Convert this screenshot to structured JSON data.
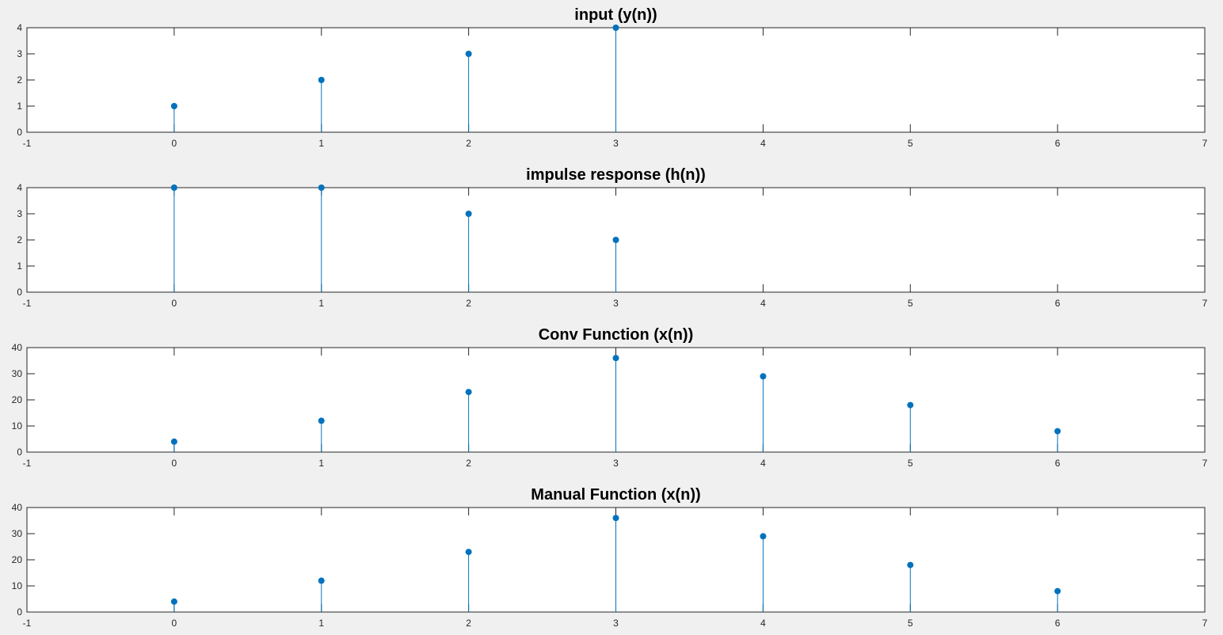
{
  "colors": {
    "figure_background": "#f0f0f0",
    "axes_background": "#ffffff",
    "axis_color": "#262626",
    "series_color": "#0072bd"
  },
  "chart_data": [
    {
      "type": "stem",
      "title": "input (y(n))",
      "x": [
        0,
        1,
        2,
        3
      ],
      "values": [
        1,
        2,
        3,
        4
      ],
      "xlim": [
        -1,
        7
      ],
      "ylim": [
        0,
        4
      ],
      "xticks": [
        -1,
        0,
        1,
        2,
        3,
        4,
        5,
        6,
        7
      ],
      "yticks": [
        0,
        1,
        2,
        3,
        4
      ],
      "grid": false
    },
    {
      "type": "stem",
      "title": "impulse response (h(n))",
      "x": [
        0,
        1,
        2,
        3
      ],
      "values": [
        4,
        4,
        3,
        2
      ],
      "xlim": [
        -1,
        7
      ],
      "ylim": [
        0,
        4
      ],
      "xticks": [
        -1,
        0,
        1,
        2,
        3,
        4,
        5,
        6,
        7
      ],
      "yticks": [
        0,
        1,
        2,
        3,
        4
      ],
      "grid": false
    },
    {
      "type": "stem",
      "title": "Conv Function (x(n))",
      "x": [
        0,
        1,
        2,
        3,
        4,
        5,
        6
      ],
      "values": [
        4,
        12,
        23,
        36,
        29,
        18,
        8
      ],
      "xlim": [
        -1,
        7
      ],
      "ylim": [
        0,
        40
      ],
      "xticks": [
        -1,
        0,
        1,
        2,
        3,
        4,
        5,
        6,
        7
      ],
      "yticks": [
        0,
        10,
        20,
        30,
        40
      ],
      "grid": false
    },
    {
      "type": "stem",
      "title": "Manual Function (x(n))",
      "x": [
        0,
        1,
        2,
        3,
        4,
        5,
        6
      ],
      "values": [
        4,
        12,
        23,
        36,
        29,
        18,
        8
      ],
      "xlim": [
        -1,
        7
      ],
      "ylim": [
        0,
        40
      ],
      "xticks": [
        -1,
        0,
        1,
        2,
        3,
        4,
        5,
        6,
        7
      ],
      "yticks": [
        0,
        10,
        20,
        30,
        40
      ],
      "grid": false
    }
  ]
}
